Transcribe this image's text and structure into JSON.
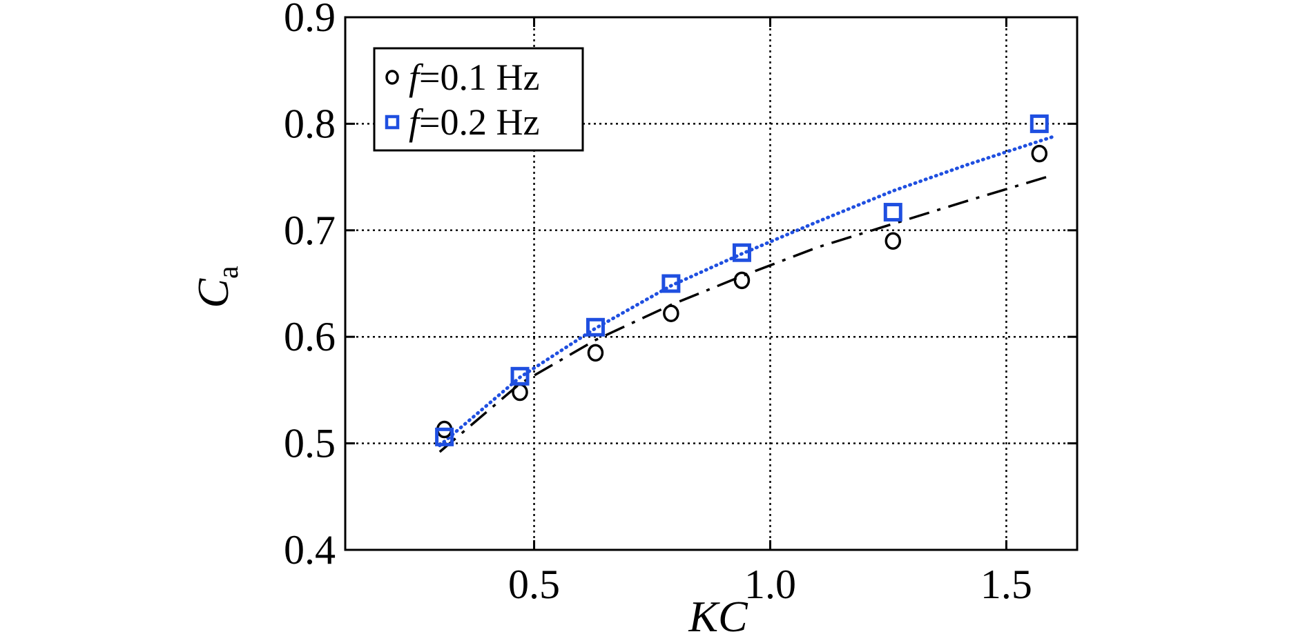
{
  "chart_data": {
    "type": "scatter",
    "xlabel": "KC",
    "ylabel_main": "C",
    "ylabel_sub": "a",
    "xlim": [
      0.1,
      1.65
    ],
    "ylim": [
      0.4,
      0.9
    ],
    "x_ticks": [
      0.5,
      1.0,
      1.5
    ],
    "x_tick_labels": [
      "0.5",
      "1.0",
      "1.5"
    ],
    "y_ticks": [
      0.4,
      0.5,
      0.6,
      0.7,
      0.8,
      0.9
    ],
    "y_tick_labels": [
      "0.4",
      "0.5",
      "0.6",
      "0.7",
      "0.8",
      "0.9"
    ],
    "grid": true,
    "legend_position": "top-left",
    "series": [
      {
        "name": "f=0.1 Hz",
        "legend_italic": "f",
        "legend_rest": "=0.1 Hz",
        "marker": "circle",
        "color": "#000000",
        "x": [
          0.31,
          0.47,
          0.63,
          0.79,
          0.94,
          1.26,
          1.57
        ],
        "y": [
          0.513,
          0.548,
          0.585,
          0.622,
          0.653,
          0.69,
          0.772
        ]
      },
      {
        "name": "f=0.2 Hz",
        "legend_italic": "f",
        "legend_rest": "=0.2 Hz",
        "marker": "square",
        "color": "#1f4fe0",
        "x": [
          0.31,
          0.47,
          0.63,
          0.79,
          0.94,
          1.26,
          1.57
        ],
        "y": [
          0.506,
          0.563,
          0.609,
          0.65,
          0.679,
          0.717,
          0.8
        ]
      }
    ],
    "fit_lines": [
      {
        "style": "dash-dot",
        "color": "#000000",
        "x": [
          0.3,
          0.47,
          0.63,
          0.79,
          0.94,
          1.1,
          1.26,
          1.42,
          1.6
        ],
        "y": [
          0.492,
          0.556,
          0.597,
          0.63,
          0.657,
          0.684,
          0.706,
          0.728,
          0.752
        ]
      },
      {
        "style": "dotted",
        "color": "#1f4fe0",
        "x": [
          0.3,
          0.47,
          0.63,
          0.79,
          0.94,
          1.1,
          1.26,
          1.42,
          1.6
        ],
        "y": [
          0.498,
          0.562,
          0.608,
          0.648,
          0.678,
          0.708,
          0.737,
          0.762,
          0.788
        ]
      }
    ]
  }
}
